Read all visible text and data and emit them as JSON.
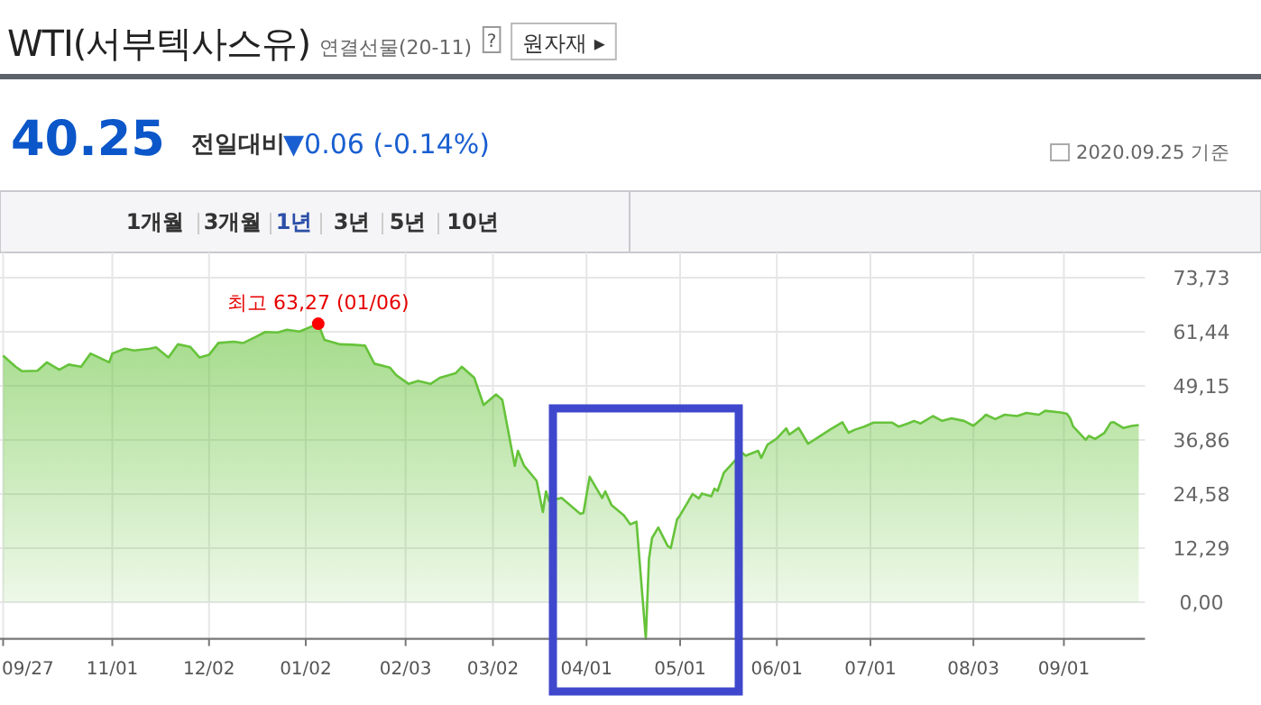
{
  "chart_data": {
    "type": "area",
    "title": "WTI(서부텍사스유)",
    "subtitle": "연결선물(20-11)",
    "annotations": [
      "?",
      "원자재 ▸",
      "40.25",
      "전일대비",
      "▼0.06 (-0.14%)",
      "2020.09.25 기준",
      "1개월",
      "3개월",
      "1년",
      "3년",
      "5년",
      "10년",
      {
        "text": "최고 63,27 (01/06)",
        "x": "2020-01-06",
        "y": 63.27
      }
    ],
    "x": [
      "2019-09-27",
      "2019-10-01",
      "2019-10-03",
      "2019-10-08",
      "2019-10-11",
      "2019-10-15",
      "2019-10-18",
      "2019-10-22",
      "2019-10-25",
      "2019-10-31",
      "2019-11-01",
      "2019-11-05",
      "2019-11-08",
      "2019-11-13",
      "2019-11-15",
      "2019-11-19",
      "2019-11-22",
      "2019-11-26",
      "2019-11-29",
      "2019-12-02",
      "2019-12-05",
      "2019-12-10",
      "2019-12-13",
      "2019-12-17",
      "2019-12-20",
      "2019-12-24",
      "2019-12-27",
      "2019-12-31",
      "2020-01-06",
      "2020-01-08",
      "2020-01-13",
      "2020-01-17",
      "2020-01-21",
      "2020-01-24",
      "2020-01-29",
      "2020-01-31",
      "2020-02-04",
      "2020-02-07",
      "2020-02-11",
      "2020-02-14",
      "2020-02-19",
      "2020-02-21",
      "2020-02-25",
      "2020-02-28",
      "2020-03-03",
      "2020-03-05",
      "2020-03-09",
      "2020-03-10",
      "2020-03-12",
      "2020-03-16",
      "2020-03-18",
      "2020-03-19",
      "2020-03-20",
      "2020-03-24",
      "2020-03-30",
      "2020-03-31",
      "2020-04-02",
      "2020-04-06",
      "2020-04-07",
      "2020-04-09",
      "2020-04-13",
      "2020-04-15",
      "2020-04-17",
      "2020-04-20",
      "2020-04-21",
      "2020-04-22",
      "2020-04-24",
      "2020-04-27",
      "2020-04-28",
      "2020-04-30",
      "2020-05-01",
      "2020-05-05",
      "2020-05-07",
      "2020-05-08",
      "2020-05-11",
      "2020-05-12",
      "2020-05-13",
      "2020-05-15",
      "2020-05-19",
      "2020-05-21",
      "2020-05-22",
      "2020-05-26",
      "2020-05-27",
      "2020-05-29",
      "2020-06-01",
      "2020-06-04",
      "2020-06-05",
      "2020-06-08",
      "2020-06-11",
      "2020-06-15",
      "2020-06-18",
      "2020-06-22",
      "2020-06-24",
      "2020-06-26",
      "2020-06-29",
      "2020-07-02",
      "2020-07-08",
      "2020-07-10",
      "2020-07-13",
      "2020-07-15",
      "2020-07-17",
      "2020-07-21",
      "2020-07-24",
      "2020-07-27",
      "2020-07-31",
      "2020-08-03",
      "2020-08-06",
      "2020-08-07",
      "2020-08-10",
      "2020-08-13",
      "2020-08-17",
      "2020-08-20",
      "2020-08-24",
      "2020-08-26",
      "2020-08-31",
      "2020-09-02",
      "2020-09-03",
      "2020-09-04",
      "2020-09-08",
      "2020-09-09",
      "2020-09-11",
      "2020-09-14",
      "2020-09-16",
      "2020-09-17",
      "2020-09-20",
      "2020-09-23",
      "2020-09-25"
    ],
    "series": [
      {
        "color": "#66c33a",
        "values": [
          56.0,
          53.5,
          52.5,
          52.6,
          54.5,
          52.8,
          54.0,
          53.5,
          56.5,
          54.5,
          56.5,
          57.6,
          57.2,
          57.6,
          57.9,
          55.6,
          58.6,
          58.0,
          55.6,
          56.2,
          58.9,
          59.2,
          58.9,
          60.3,
          61.4,
          61.3,
          61.9,
          61.5,
          63.27,
          59.6,
          58.6,
          58.5,
          58.3,
          54.2,
          53.3,
          51.6,
          49.6,
          50.3,
          49.6,
          51.0,
          52.0,
          53.5,
          51.0,
          44.8,
          47.2,
          46.0,
          31.0,
          34.4,
          31.0,
          27.6,
          20.5,
          25.2,
          23.0,
          23.7,
          20.1,
          20.3,
          28.5,
          23.7,
          25.2,
          22.1,
          19.7,
          17.7,
          18.3,
          -8.3,
          9.8,
          14.6,
          17.0,
          12.8,
          12.3,
          18.8,
          19.8,
          24.6,
          23.6,
          24.7,
          24.1,
          25.8,
          25.3,
          29.4,
          32.5,
          33.9,
          33.3,
          34.4,
          32.8,
          35.8,
          37.2,
          39.5,
          38.1,
          39.6,
          36.0,
          37.8,
          39.2,
          40.9,
          38.5,
          39.2,
          39.9,
          40.8,
          40.8,
          39.9,
          40.6,
          41.2,
          40.6,
          42.3,
          41.2,
          41.8,
          41.2,
          40.1,
          41.9,
          42.6,
          41.6,
          42.6,
          42.3,
          43.0,
          42.6,
          43.5,
          43.1,
          42.8,
          41.8,
          39.9,
          36.9,
          37.8,
          37.1,
          38.5,
          40.8,
          40.9,
          39.6,
          40.1,
          40.25
        ]
      }
    ],
    "xlim": [
      "2019-09-26",
      "2020-09-27"
    ],
    "xticks": [
      {
        "value": "2019-09-27",
        "label": "09/27"
      },
      {
        "value": "2019-11-01",
        "label": "11/01"
      },
      {
        "value": "2019-12-02",
        "label": "12/02"
      },
      {
        "value": "2020-01-02",
        "label": "01/02"
      },
      {
        "value": "2020-02-03",
        "label": "02/03"
      },
      {
        "value": "2020-03-02",
        "label": "03/02"
      },
      {
        "value": "2020-04-01",
        "label": "04/01"
      },
      {
        "value": "2020-05-01",
        "label": "05/01"
      },
      {
        "value": "2020-06-01",
        "label": "06/01"
      },
      {
        "value": "2020-07-01",
        "label": "07/01"
      },
      {
        "value": "2020-08-03",
        "label": "08/03"
      },
      {
        "value": "2020-09-01",
        "label": "09/01"
      }
    ],
    "ylim": [
      -8.3,
      73.73
    ],
    "yticks": [
      {
        "value": 0,
        "label": "0,00"
      },
      {
        "value": 12.29,
        "label": "12,29"
      },
      {
        "value": 24.58,
        "label": "24,58"
      },
      {
        "value": 36.86,
        "label": "36,86"
      },
      {
        "value": 49.15,
        "label": "49,15"
      },
      {
        "value": 61.44,
        "label": "61,44"
      },
      {
        "value": 73.73,
        "label": "73,73"
      }
    ],
    "grid": true
  }
}
